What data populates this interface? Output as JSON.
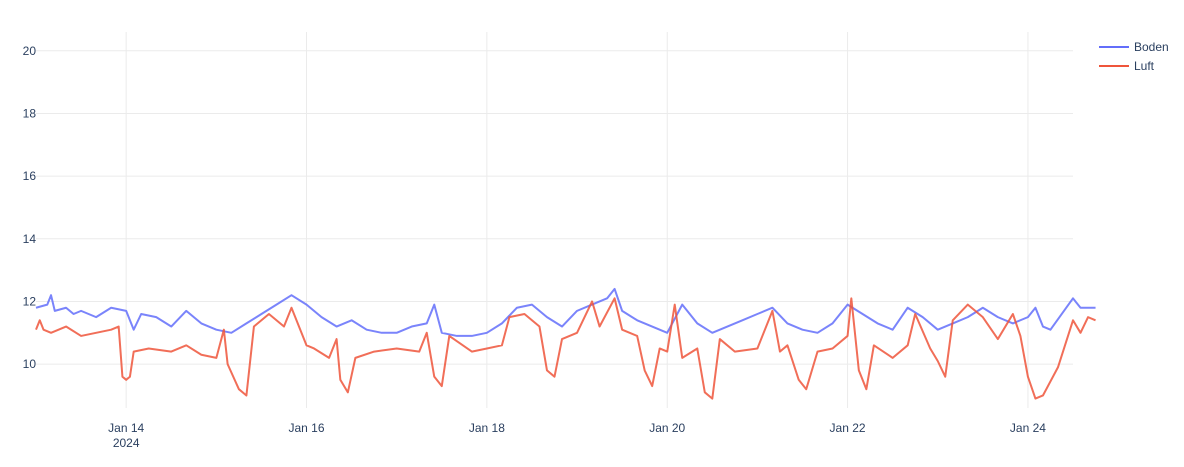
{
  "chart_data": {
    "type": "line",
    "title": "",
    "xlabel": "",
    "ylabel": "",
    "x_range": [
      "2024-01-13T00:00",
      "2024-01-24T12:00"
    ],
    "ylim": [
      8.6,
      20.6
    ],
    "grid": true,
    "legend_position": "top-right",
    "y_ticks": [
      10,
      12,
      14,
      16,
      18,
      20
    ],
    "y_tick_labels": [
      "10",
      "12",
      "14",
      "16",
      "18",
      "20"
    ],
    "x_ticks": [
      "2024-01-14",
      "2024-01-16",
      "2024-01-18",
      "2024-01-20",
      "2024-01-22",
      "2024-01-24"
    ],
    "x_tick_labels": [
      "Jan 14",
      "Jan 16",
      "Jan 18",
      "Jan 20",
      "Jan 22",
      "Jan 24"
    ],
    "x_tick_sublabel": "2024",
    "series": [
      {
        "name": "Boden",
        "color": "#636efa",
        "points": [
          [
            "2024-01-13T00:00",
            11.8
          ],
          [
            "2024-01-13T03:00",
            11.9
          ],
          [
            "2024-01-13T04:00",
            12.2
          ],
          [
            "2024-01-13T05:00",
            11.7
          ],
          [
            "2024-01-13T08:00",
            11.8
          ],
          [
            "2024-01-13T10:00",
            11.6
          ],
          [
            "2024-01-13T12:00",
            11.7
          ],
          [
            "2024-01-13T16:00",
            11.5
          ],
          [
            "2024-01-13T20:00",
            11.8
          ],
          [
            "2024-01-14T00:00",
            11.7
          ],
          [
            "2024-01-14T02:00",
            11.1
          ],
          [
            "2024-01-14T04:00",
            11.6
          ],
          [
            "2024-01-14T08:00",
            11.5
          ],
          [
            "2024-01-14T12:00",
            11.2
          ],
          [
            "2024-01-14T16:00",
            11.7
          ],
          [
            "2024-01-14T20:00",
            11.3
          ],
          [
            "2024-01-15T00:00",
            11.1
          ],
          [
            "2024-01-15T04:00",
            11.0
          ],
          [
            "2024-01-15T08:00",
            11.3
          ],
          [
            "2024-01-15T12:00",
            11.6
          ],
          [
            "2024-01-15T16:00",
            11.9
          ],
          [
            "2024-01-15T20:00",
            12.2
          ],
          [
            "2024-01-16T00:00",
            11.9
          ],
          [
            "2024-01-16T04:00",
            11.5
          ],
          [
            "2024-01-16T08:00",
            11.2
          ],
          [
            "2024-01-16T12:00",
            11.4
          ],
          [
            "2024-01-16T16:00",
            11.1
          ],
          [
            "2024-01-16T20:00",
            11.0
          ],
          [
            "2024-01-17T00:00",
            11.0
          ],
          [
            "2024-01-17T04:00",
            11.2
          ],
          [
            "2024-01-17T08:00",
            11.3
          ],
          [
            "2024-01-17T10:00",
            11.9
          ],
          [
            "2024-01-17T12:00",
            11.0
          ],
          [
            "2024-01-17T16:00",
            10.9
          ],
          [
            "2024-01-17T20:00",
            10.9
          ],
          [
            "2024-01-18T00:00",
            11.0
          ],
          [
            "2024-01-18T04:00",
            11.3
          ],
          [
            "2024-01-18T08:00",
            11.8
          ],
          [
            "2024-01-18T12:00",
            11.9
          ],
          [
            "2024-01-18T16:00",
            11.5
          ],
          [
            "2024-01-18T20:00",
            11.2
          ],
          [
            "2024-01-19T00:00",
            11.7
          ],
          [
            "2024-01-19T04:00",
            11.9
          ],
          [
            "2024-01-19T08:00",
            12.1
          ],
          [
            "2024-01-19T10:00",
            12.4
          ],
          [
            "2024-01-19T12:00",
            11.7
          ],
          [
            "2024-01-19T16:00",
            11.4
          ],
          [
            "2024-01-19T20:00",
            11.2
          ],
          [
            "2024-01-20T00:00",
            11.0
          ],
          [
            "2024-01-20T04:00",
            11.9
          ],
          [
            "2024-01-20T08:00",
            11.3
          ],
          [
            "2024-01-20T12:00",
            11.0
          ],
          [
            "2024-01-20T16:00",
            11.2
          ],
          [
            "2024-01-20T20:00",
            11.4
          ],
          [
            "2024-01-21T00:00",
            11.6
          ],
          [
            "2024-01-21T04:00",
            11.8
          ],
          [
            "2024-01-21T08:00",
            11.3
          ],
          [
            "2024-01-21T12:00",
            11.1
          ],
          [
            "2024-01-21T16:00",
            11.0
          ],
          [
            "2024-01-21T20:00",
            11.3
          ],
          [
            "2024-01-22T00:00",
            11.9
          ],
          [
            "2024-01-22T04:00",
            11.6
          ],
          [
            "2024-01-22T08:00",
            11.3
          ],
          [
            "2024-01-22T12:00",
            11.1
          ],
          [
            "2024-01-22T16:00",
            11.8
          ],
          [
            "2024-01-22T20:00",
            11.5
          ],
          [
            "2024-01-23T00:00",
            11.1
          ],
          [
            "2024-01-23T04:00",
            11.3
          ],
          [
            "2024-01-23T08:00",
            11.5
          ],
          [
            "2024-01-23T12:00",
            11.8
          ],
          [
            "2024-01-23T16:00",
            11.5
          ],
          [
            "2024-01-23T20:00",
            11.3
          ],
          [
            "2024-01-24T00:00",
            11.5
          ],
          [
            "2024-01-24T02:00",
            11.8
          ],
          [
            "2024-01-24T04:00",
            11.2
          ],
          [
            "2024-01-24T06:00",
            11.1
          ],
          [
            "2024-01-24T12:00",
            12.1
          ],
          [
            "2024-01-24T14:00",
            11.8
          ],
          [
            "2024-01-24T18:00",
            11.8
          ]
        ]
      },
      {
        "name": "Luft",
        "color": "#ef553b",
        "points": [
          [
            "2024-01-13T00:00",
            11.1
          ],
          [
            "2024-01-13T01:00",
            11.4
          ],
          [
            "2024-01-13T02:00",
            11.1
          ],
          [
            "2024-01-13T04:00",
            11.0
          ],
          [
            "2024-01-13T08:00",
            11.2
          ],
          [
            "2024-01-13T12:00",
            10.9
          ],
          [
            "2024-01-13T16:00",
            11.0
          ],
          [
            "2024-01-13T20:00",
            11.1
          ],
          [
            "2024-01-13T22:00",
            11.2
          ],
          [
            "2024-01-13T23:00",
            9.6
          ],
          [
            "2024-01-14T00:00",
            9.5
          ],
          [
            "2024-01-14T01:00",
            9.6
          ],
          [
            "2024-01-14T02:00",
            10.4
          ],
          [
            "2024-01-14T06:00",
            10.5
          ],
          [
            "2024-01-14T12:00",
            10.4
          ],
          [
            "2024-01-14T16:00",
            10.6
          ],
          [
            "2024-01-14T20:00",
            10.3
          ],
          [
            "2024-01-15T00:00",
            10.2
          ],
          [
            "2024-01-15T02:00",
            11.1
          ],
          [
            "2024-01-15T03:00",
            10.0
          ],
          [
            "2024-01-15T06:00",
            9.2
          ],
          [
            "2024-01-15T08:00",
            9.0
          ],
          [
            "2024-01-15T10:00",
            11.2
          ],
          [
            "2024-01-15T14:00",
            11.6
          ],
          [
            "2024-01-15T18:00",
            11.2
          ],
          [
            "2024-01-15T20:00",
            11.8
          ],
          [
            "2024-01-16T00:00",
            10.6
          ],
          [
            "2024-01-16T02:00",
            10.5
          ],
          [
            "2024-01-16T06:00",
            10.2
          ],
          [
            "2024-01-16T08:00",
            10.8
          ],
          [
            "2024-01-16T09:00",
            9.5
          ],
          [
            "2024-01-16T11:00",
            9.1
          ],
          [
            "2024-01-16T13:00",
            10.2
          ],
          [
            "2024-01-16T18:00",
            10.4
          ],
          [
            "2024-01-17T00:00",
            10.5
          ],
          [
            "2024-01-17T06:00",
            10.4
          ],
          [
            "2024-01-17T08:00",
            11.0
          ],
          [
            "2024-01-17T10:00",
            9.6
          ],
          [
            "2024-01-17T12:00",
            9.3
          ],
          [
            "2024-01-17T14:00",
            10.9
          ],
          [
            "2024-01-17T20:00",
            10.4
          ],
          [
            "2024-01-18T00:00",
            10.5
          ],
          [
            "2024-01-18T04:00",
            10.6
          ],
          [
            "2024-01-18T06:00",
            11.5
          ],
          [
            "2024-01-18T10:00",
            11.6
          ],
          [
            "2024-01-18T14:00",
            11.2
          ],
          [
            "2024-01-18T16:00",
            9.8
          ],
          [
            "2024-01-18T18:00",
            9.6
          ],
          [
            "2024-01-18T20:00",
            10.8
          ],
          [
            "2024-01-19T00:00",
            11.0
          ],
          [
            "2024-01-19T04:00",
            12.0
          ],
          [
            "2024-01-19T06:00",
            11.2
          ],
          [
            "2024-01-19T10:00",
            12.1
          ],
          [
            "2024-01-19T12:00",
            11.1
          ],
          [
            "2024-01-19T16:00",
            10.9
          ],
          [
            "2024-01-19T18:00",
            9.8
          ],
          [
            "2024-01-19T20:00",
            9.3
          ],
          [
            "2024-01-19T22:00",
            10.5
          ],
          [
            "2024-01-20T00:00",
            10.4
          ],
          [
            "2024-01-20T02:00",
            11.9
          ],
          [
            "2024-01-20T04:00",
            10.2
          ],
          [
            "2024-01-20T08:00",
            10.5
          ],
          [
            "2024-01-20T10:00",
            9.1
          ],
          [
            "2024-01-20T12:00",
            8.9
          ],
          [
            "2024-01-20T14:00",
            10.8
          ],
          [
            "2024-01-20T18:00",
            10.4
          ],
          [
            "2024-01-21T00:00",
            10.5
          ],
          [
            "2024-01-21T04:00",
            11.7
          ],
          [
            "2024-01-21T06:00",
            10.4
          ],
          [
            "2024-01-21T08:00",
            10.6
          ],
          [
            "2024-01-21T11:00",
            9.5
          ],
          [
            "2024-01-21T13:00",
            9.2
          ],
          [
            "2024-01-21T16:00",
            10.4
          ],
          [
            "2024-01-21T20:00",
            10.5
          ],
          [
            "2024-01-22T00:00",
            10.9
          ],
          [
            "2024-01-22T01:00",
            12.1
          ],
          [
            "2024-01-22T03:00",
            9.8
          ],
          [
            "2024-01-22T05:00",
            9.2
          ],
          [
            "2024-01-22T07:00",
            10.6
          ],
          [
            "2024-01-22T12:00",
            10.2
          ],
          [
            "2024-01-22T16:00",
            10.6
          ],
          [
            "2024-01-22T18:00",
            11.6
          ],
          [
            "2024-01-22T22:00",
            10.5
          ],
          [
            "2024-01-23T00:00",
            10.1
          ],
          [
            "2024-01-23T02:00",
            9.6
          ],
          [
            "2024-01-23T04:00",
            11.4
          ],
          [
            "2024-01-23T08:00",
            11.9
          ],
          [
            "2024-01-23T12:00",
            11.5
          ],
          [
            "2024-01-23T16:00",
            10.8
          ],
          [
            "2024-01-23T20:00",
            11.6
          ],
          [
            "2024-01-23T22:00",
            10.9
          ],
          [
            "2024-01-24T00:00",
            9.6
          ],
          [
            "2024-01-24T02:00",
            8.9
          ],
          [
            "2024-01-24T04:00",
            9.0
          ],
          [
            "2024-01-24T08:00",
            9.9
          ],
          [
            "2024-01-24T12:00",
            11.4
          ],
          [
            "2024-01-24T14:00",
            11.0
          ],
          [
            "2024-01-24T16:00",
            11.5
          ],
          [
            "2024-01-24T18:00",
            11.4
          ]
        ]
      }
    ]
  }
}
